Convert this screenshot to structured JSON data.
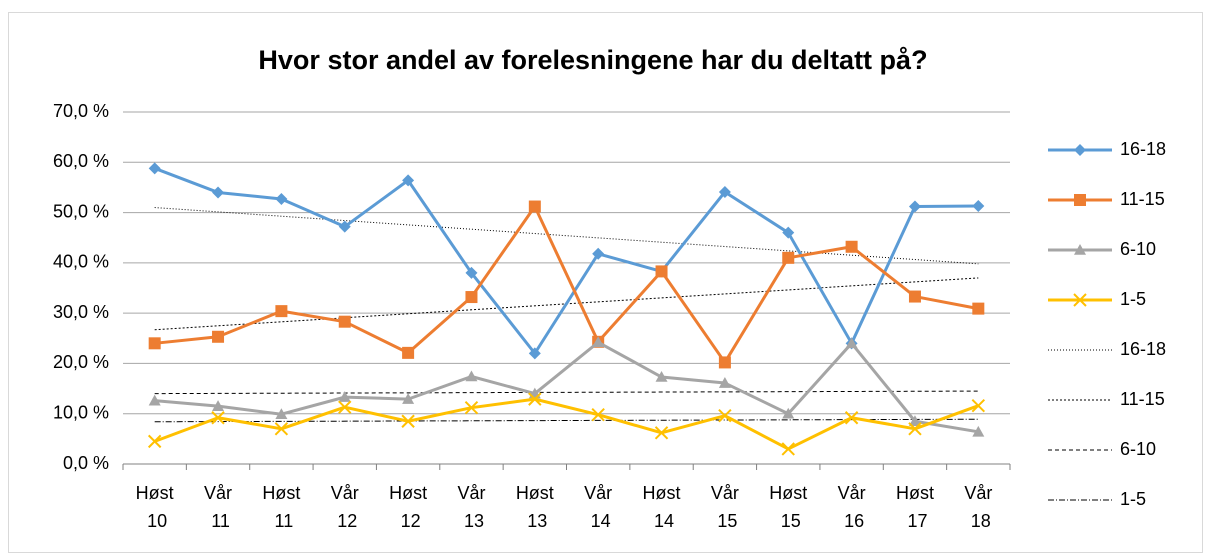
{
  "chart_data": {
    "type": "line",
    "title": "Hvor stor andel av forelesningene har du deltatt på?",
    "categories": [
      "Høst 10",
      "Vår 11",
      "Høst 11",
      "Vår 12",
      "Høst 12",
      "Vår 13",
      "Høst 13",
      "Vår 14",
      "Høst 14",
      "Vår 15",
      "Høst 15",
      "Vår 16",
      "Høst 17",
      "Vår 18"
    ],
    "ylim": [
      0,
      70
    ],
    "yticks": [
      {
        "value": 0,
        "label": "0,0 %"
      },
      {
        "value": 10,
        "label": "10,0 %"
      },
      {
        "value": 20,
        "label": "20,0 %"
      },
      {
        "value": 30,
        "label": "30,0 %"
      },
      {
        "value": 40,
        "label": "40,0 %"
      },
      {
        "value": 50,
        "label": "50,0 %"
      },
      {
        "value": 60,
        "label": "60,0 %"
      },
      {
        "value": 70,
        "label": "70,0 %"
      }
    ],
    "grid": true,
    "legend": "right",
    "series": [
      {
        "name": "16-18",
        "color": "#5b9bd5",
        "marker": "diamond",
        "values": [
          58.8,
          54.0,
          52.7,
          47.2,
          56.4,
          38.0,
          22.0,
          41.8,
          38.3,
          54.1,
          46.0,
          24.0,
          51.2,
          51.3
        ]
      },
      {
        "name": "11-15",
        "color": "#ed7d31",
        "marker": "square",
        "values": [
          24.0,
          25.3,
          30.4,
          28.3,
          22.1,
          33.2,
          51.2,
          24.3,
          38.3,
          20.2,
          41.0,
          43.2,
          33.3,
          30.9
        ]
      },
      {
        "name": "6-10",
        "color": "#a5a5a5",
        "marker": "triangle",
        "values": [
          12.6,
          11.5,
          9.9,
          13.3,
          12.9,
          17.4,
          14.0,
          24.2,
          17.3,
          16.1,
          10.0,
          24.0,
          8.5,
          6.4
        ]
      },
      {
        "name": "1-5",
        "color": "#ffc000",
        "marker": "x",
        "values": [
          4.5,
          9.2,
          7.0,
          11.3,
          8.5,
          11.2,
          12.9,
          9.8,
          6.2,
          9.6,
          3.0,
          9.2,
          7.0,
          11.6
        ]
      }
    ],
    "trendlines": [
      {
        "name": "16-18",
        "color": "#000000",
        "dash": "1,2",
        "values": [
          51.0,
          39.8
        ]
      },
      {
        "name": "11-15",
        "color": "#000000",
        "dash": "2,2",
        "values": [
          26.7,
          37.0
        ]
      },
      {
        "name": "6-10",
        "color": "#000000",
        "dash": "4,3",
        "values": [
          14.0,
          14.5
        ]
      },
      {
        "name": "1-5",
        "color": "#000000",
        "dash": "6,2,1,2",
        "values": [
          8.4,
          8.9
        ]
      }
    ]
  }
}
